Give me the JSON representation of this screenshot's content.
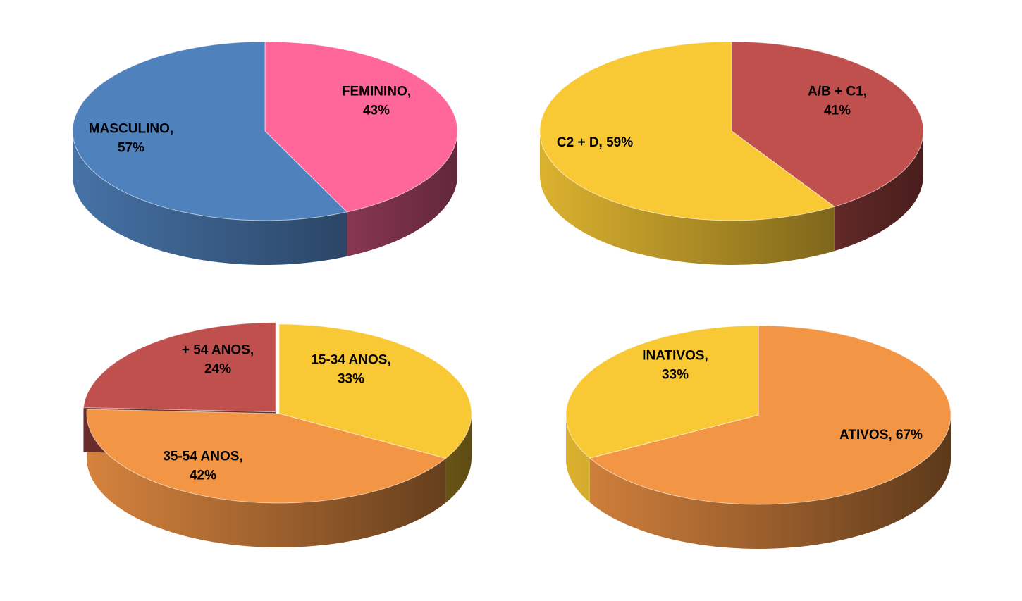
{
  "chart_data": [
    {
      "type": "pie",
      "slices": [
        {
          "label_lines": [
            "FEMININO,",
            "43%"
          ],
          "category": "FEMININO",
          "value": 43,
          "color": "#FF6699"
        },
        {
          "label_lines": [
            "MASCULINO,",
            "57%"
          ],
          "category": "MASCULINO",
          "value": 57,
          "color": "#4F81BD"
        }
      ]
    },
    {
      "type": "pie",
      "slices": [
        {
          "label_lines": [
            "A/B + C1,",
            "41%"
          ],
          "category": "A/B + C1",
          "value": 41,
          "color": "#C0504D"
        },
        {
          "label_lines": [
            "C2 + D, 59%"
          ],
          "category": "C2 + D",
          "value": 59,
          "color": "#F9C935"
        }
      ]
    },
    {
      "type": "pie",
      "slices": [
        {
          "label_lines": [
            "15-34 ANOS,",
            "33%"
          ],
          "category": "15-34 ANOS",
          "value": 33,
          "color": "#F9C935"
        },
        {
          "label_lines": [
            "35-54 ANOS,",
            "42%"
          ],
          "category": "35-54 ANOS",
          "value": 42,
          "color": "#F29545"
        },
        {
          "label_lines": [
            "+ 54 ANOS,",
            "24%"
          ],
          "category": "+ 54 ANOS",
          "value": 24,
          "color": "#C0504D"
        }
      ]
    },
    {
      "type": "pie",
      "slices": [
        {
          "label_lines": [
            "ATIVOS, 67%"
          ],
          "category": "ATIVOS",
          "value": 67,
          "color": "#F29545"
        },
        {
          "label_lines": [
            "INATIVOS,",
            "33%"
          ],
          "category": "INATIVOS",
          "value": 33,
          "color": "#F9C935"
        }
      ]
    }
  ]
}
